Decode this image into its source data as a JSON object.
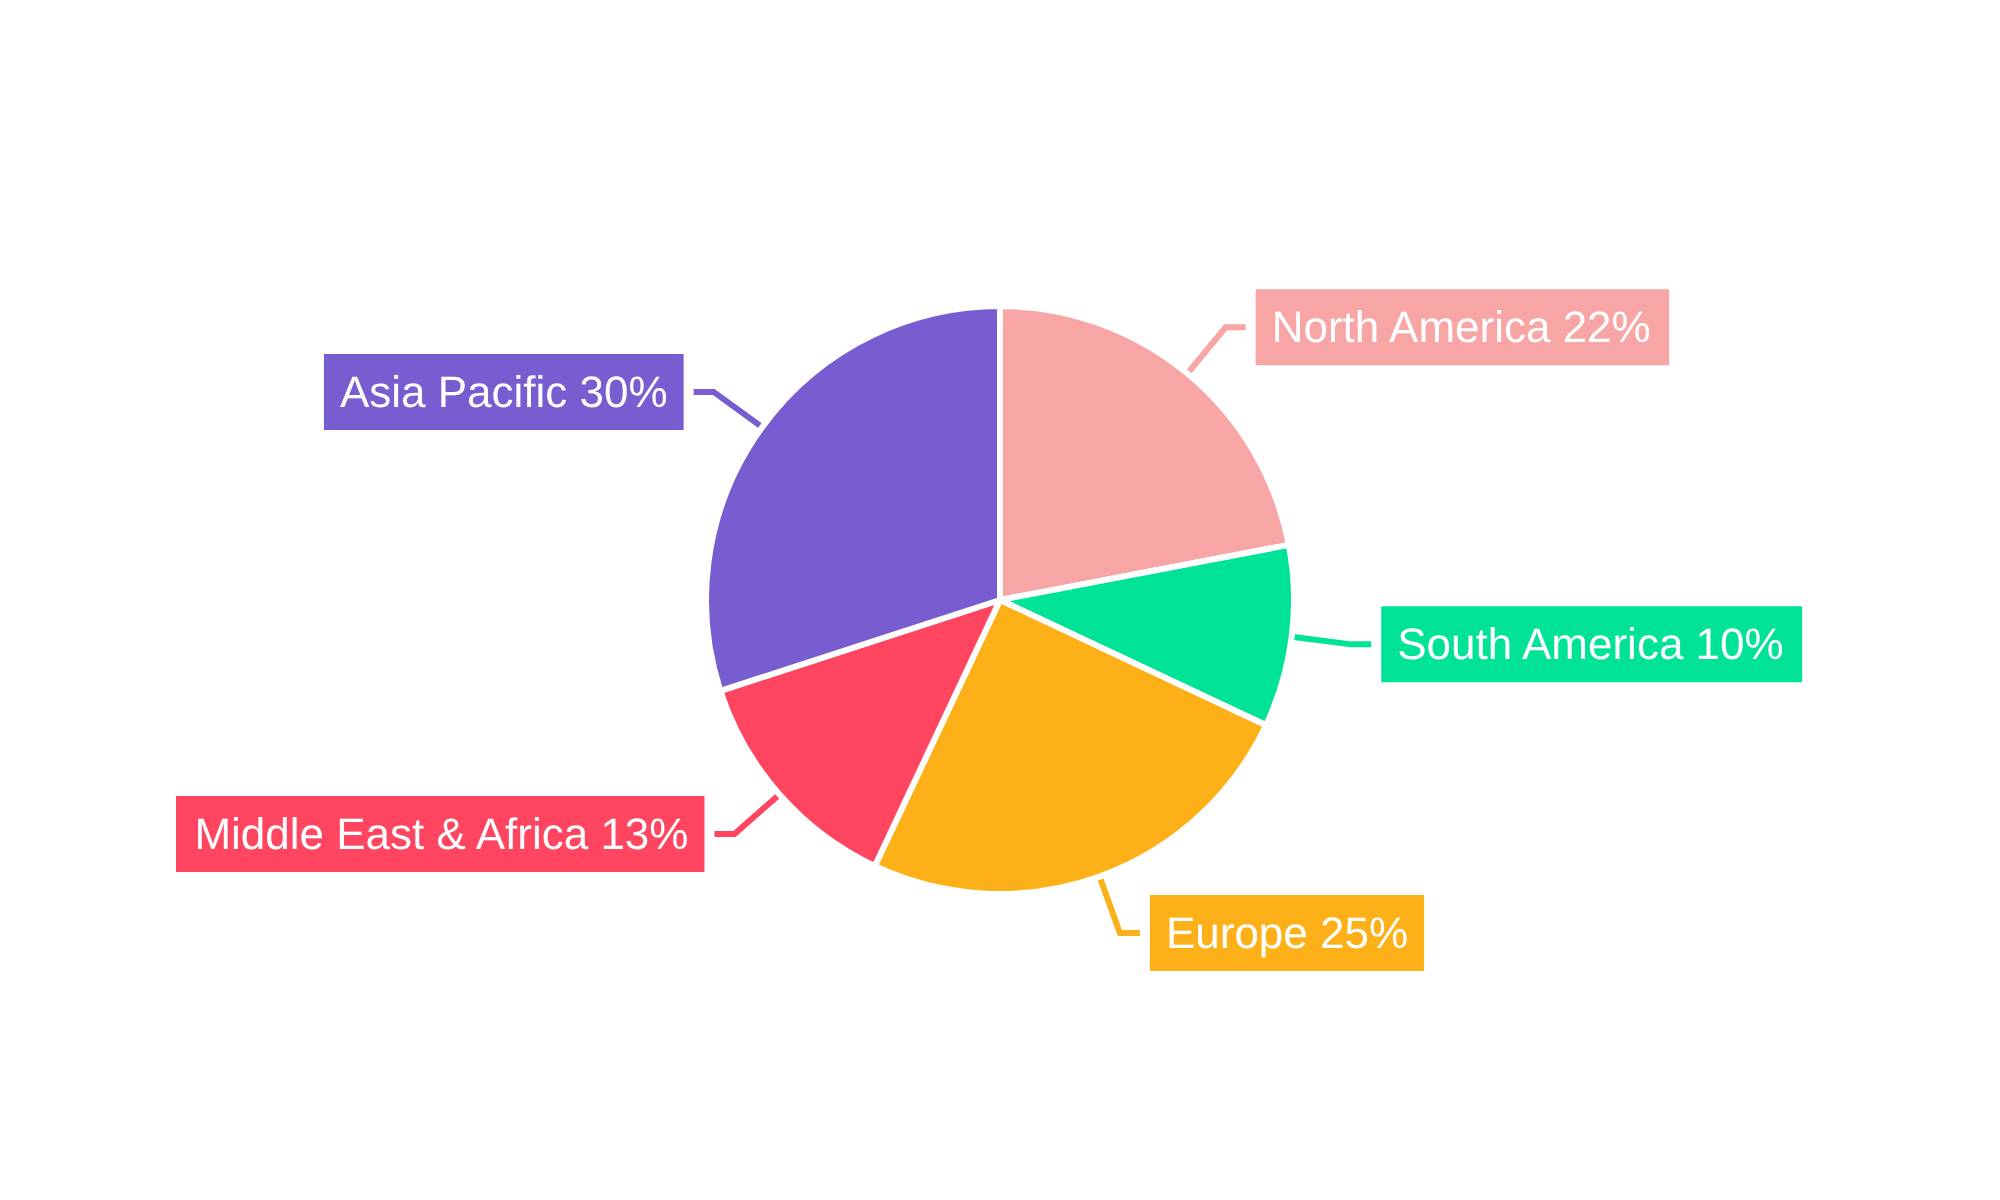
{
  "chart_data": {
    "type": "pie",
    "categories": [
      "North America",
      "South America",
      "Europe",
      "Middle East & Africa",
      "Asia Pacific"
    ],
    "values": [
      22,
      10,
      25,
      13,
      30
    ],
    "colors": [
      "#f8a5a6",
      "#00e396",
      "#feb019",
      "#ff4560",
      "#775dd0"
    ],
    "value_labels": [
      "22%",
      "10%",
      "25%",
      "13%",
      "30%"
    ],
    "legend": false
  }
}
